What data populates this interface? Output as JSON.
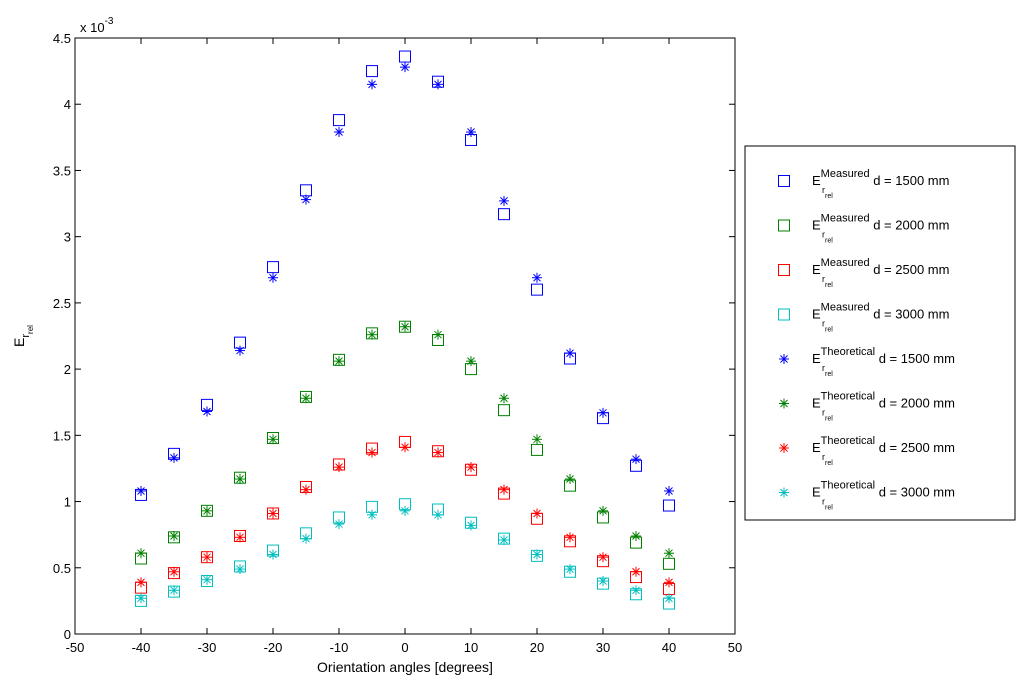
{
  "chart_data": {
    "type": "scatter",
    "xlabel": "Orientation angles [degrees]",
    "ylabel": {
      "main": "E",
      "sub1": "r",
      "sub2": "rel"
    },
    "y_multiplier": {
      "base": "x 10",
      "exponent": "-3"
    },
    "xlim": [
      -50,
      50
    ],
    "ylim": [
      0,
      4.5
    ],
    "xticks": [
      "-50",
      "-40",
      "-30",
      "-20",
      "-10",
      "0",
      "10",
      "20",
      "30",
      "40",
      "50"
    ],
    "yticks": [
      "0",
      "0.5",
      "1",
      "1.5",
      "2",
      "2.5",
      "3",
      "3.5",
      "4",
      "4.5"
    ],
    "grid": false,
    "legend_position": "outside-right",
    "x": [
      -40,
      -35,
      -30,
      -25,
      -20,
      -15,
      -10,
      -5,
      0,
      5,
      10,
      15,
      20,
      25,
      30,
      35,
      40
    ],
    "series": [
      {
        "name": "d = 1500 mm",
        "sup": "Measured",
        "marker": "square",
        "color": "#0000ff",
        "values": [
          1.05,
          1.36,
          1.73,
          2.2,
          2.77,
          3.35,
          3.88,
          4.25,
          4.36,
          4.17,
          3.73,
          3.17,
          2.6,
          2.08,
          1.63,
          1.27,
          0.97
        ]
      },
      {
        "name": "d = 2000 mm",
        "sup": "Measured",
        "marker": "square",
        "color": "#008000",
        "values": [
          0.57,
          0.73,
          0.93,
          1.18,
          1.48,
          1.79,
          2.07,
          2.27,
          2.32,
          2.22,
          2.0,
          1.69,
          1.39,
          1.12,
          0.88,
          0.69,
          0.53
        ]
      },
      {
        "name": "d = 2500 mm",
        "sup": "Measured",
        "marker": "square",
        "color": "#ff0000",
        "values": [
          0.35,
          0.46,
          0.58,
          0.74,
          0.91,
          1.11,
          1.28,
          1.4,
          1.45,
          1.38,
          1.24,
          1.06,
          0.87,
          0.7,
          0.55,
          0.43,
          0.34
        ]
      },
      {
        "name": "d = 3000 mm",
        "sup": "Measured",
        "marker": "square",
        "color": "#00bfbf",
        "values": [
          0.25,
          0.32,
          0.4,
          0.51,
          0.63,
          0.76,
          0.88,
          0.96,
          0.98,
          0.94,
          0.84,
          0.72,
          0.59,
          0.47,
          0.38,
          0.3,
          0.23
        ]
      },
      {
        "name": "d = 1500 mm",
        "sup": "Theoretical",
        "marker": "asterisk",
        "color": "#0000ff",
        "values": [
          1.08,
          1.33,
          1.68,
          2.14,
          2.69,
          3.28,
          3.79,
          4.15,
          4.28,
          4.15,
          3.79,
          3.27,
          2.69,
          2.12,
          1.67,
          1.32,
          1.08
        ]
      },
      {
        "name": "d = 2000 mm",
        "sup": "Theoretical",
        "marker": "asterisk",
        "color": "#008000",
        "values": [
          0.61,
          0.74,
          0.93,
          1.17,
          1.47,
          1.78,
          2.06,
          2.26,
          2.32,
          2.26,
          2.06,
          1.78,
          1.47,
          1.17,
          0.93,
          0.74,
          0.61
        ]
      },
      {
        "name": "d = 2500 mm",
        "sup": "Theoretical",
        "marker": "asterisk",
        "color": "#ff0000",
        "values": [
          0.39,
          0.47,
          0.58,
          0.73,
          0.91,
          1.09,
          1.26,
          1.37,
          1.41,
          1.37,
          1.26,
          1.09,
          0.91,
          0.73,
          0.58,
          0.47,
          0.39
        ]
      },
      {
        "name": "d = 3000 mm",
        "sup": "Theoretical",
        "marker": "asterisk",
        "color": "#00bfbf",
        "values": [
          0.27,
          0.33,
          0.41,
          0.49,
          0.6,
          0.72,
          0.83,
          0.9,
          0.93,
          0.9,
          0.82,
          0.71,
          0.6,
          0.49,
          0.4,
          0.33,
          0.27
        ]
      }
    ]
  }
}
